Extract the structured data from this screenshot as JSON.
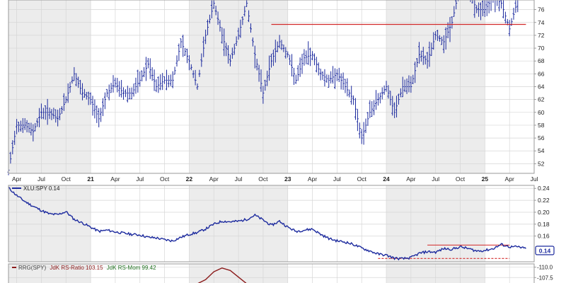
{
  "chart_data": [
    {
      "type": "ohlc",
      "symbol": "XLU",
      "y_ticks": [
        52,
        54,
        56,
        58,
        60,
        62,
        64,
        66,
        68,
        70,
        72,
        74,
        76
      ],
      "ylim": [
        50.5,
        77.5
      ],
      "x_ticks": [
        "Apr",
        "Jul",
        "Oct",
        "21",
        "Apr",
        "Jul",
        "Oct",
        "22",
        "Apr",
        "Jul",
        "Oct",
        "23",
        "Apr",
        "Jul",
        "Oct",
        "24",
        "Apr",
        "Jul",
        "Oct",
        "25",
        "Apr",
        "Jul"
      ],
      "x_tick_dates": [
        "2020-04",
        "2020-07",
        "2020-10",
        "2021-01",
        "2021-04",
        "2021-07",
        "2021-10",
        "2022-01",
        "2022-04",
        "2022-07",
        "2022-10",
        "2023-01",
        "2023-04",
        "2023-07",
        "2023-10",
        "2024-01",
        "2024-04",
        "2024-07",
        "2024-10",
        "2025-01",
        "2025-04",
        "2025-07"
      ],
      "x_range": [
        "2020-03",
        "2025-07"
      ],
      "series_color": "#1c2a9e",
      "close_path": [
        [
          "2020-03",
          51
        ],
        [
          "2020-04",
          58
        ],
        [
          "2020-05",
          58
        ],
        [
          "2020-06",
          57
        ],
        [
          "2020-07",
          60
        ],
        [
          "2020-08",
          60
        ],
        [
          "2020-09",
          59
        ],
        [
          "2020-10",
          62
        ],
        [
          "2020-11",
          66
        ],
        [
          "2020-12",
          63
        ],
        [
          "2021-01",
          62
        ],
        [
          "2021-02",
          59
        ],
        [
          "2021-03",
          63
        ],
        [
          "2021-04",
          64.5
        ],
        [
          "2021-05",
          63
        ],
        [
          "2021-06",
          63
        ],
        [
          "2021-07",
          65
        ],
        [
          "2021-08",
          67.5
        ],
        [
          "2021-09",
          64
        ],
        [
          "2021-10",
          65
        ],
        [
          "2021-11",
          65
        ],
        [
          "2021-12",
          71
        ],
        [
          "2022-01",
          68
        ],
        [
          "2022-02",
          64
        ],
        [
          "2022-03",
          72
        ],
        [
          "2022-04",
          77
        ],
        [
          "2022-05",
          72
        ],
        [
          "2022-06",
          68
        ],
        [
          "2022-07",
          72
        ],
        [
          "2022-08",
          77
        ],
        [
          "2022-09",
          69
        ],
        [
          "2022-10",
          63
        ],
        [
          "2022-11",
          68
        ],
        [
          "2022-12",
          71
        ],
        [
          "2023-01",
          69
        ],
        [
          "2023-02",
          65
        ],
        [
          "2023-03",
          68.5
        ],
        [
          "2023-04",
          69
        ],
        [
          "2023-05",
          66
        ],
        [
          "2023-06",
          65
        ],
        [
          "2023-07",
          66
        ],
        [
          "2023-08",
          64
        ],
        [
          "2023-09",
          62
        ],
        [
          "2023-10",
          56
        ],
        [
          "2023-11",
          60
        ],
        [
          "2023-12",
          62
        ],
        [
          "2024-01",
          64
        ],
        [
          "2024-02",
          60
        ],
        [
          "2024-03",
          64
        ],
        [
          "2024-04",
          64
        ],
        [
          "2024-05",
          69
        ],
        [
          "2024-06",
          68
        ],
        [
          "2024-07",
          72
        ],
        [
          "2024-08",
          71
        ],
        [
          "2024-09",
          74
        ],
        [
          "2024-10",
          80
        ],
        [
          "2024-11",
          79
        ],
        [
          "2024-12",
          76
        ],
        [
          "2025-01",
          76
        ],
        [
          "2025-02",
          78
        ],
        [
          "2025-03",
          77
        ],
        [
          "2025-04",
          73
        ],
        [
          "2025-05",
          77.5
        ]
      ],
      "annotations": [
        {
          "type": "resistance",
          "value": 73.7,
          "from": "2022-11",
          "to": "2025-06",
          "color": "#d22a2a"
        }
      ]
    },
    {
      "type": "line",
      "legend": "XLU:SPY 0.14",
      "current_value_label": "0.14",
      "y_ticks": [
        "0.24",
        "0.22",
        "0.20",
        "0.18",
        "0.16"
      ],
      "y_tick_values": [
        0.24,
        0.22,
        0.2,
        0.18,
        0.16
      ],
      "ylim": [
        0.117,
        0.245
      ],
      "series_color": "#1c2a9e",
      "series": [
        {
          "name": "XLU:SPY",
          "points": [
            [
              "2020-03",
              0.241
            ],
            [
              "2020-04",
              0.228
            ],
            [
              "2020-05",
              0.218
            ],
            [
              "2020-06",
              0.21
            ],
            [
              "2020-07",
              0.203
            ],
            [
              "2020-08",
              0.197
            ],
            [
              "2020-09",
              0.196
            ],
            [
              "2020-10",
              0.201
            ],
            [
              "2020-11",
              0.188
            ],
            [
              "2020-12",
              0.182
            ],
            [
              "2021-01",
              0.175
            ],
            [
              "2021-02",
              0.168
            ],
            [
              "2021-03",
              0.17
            ],
            [
              "2021-04",
              0.167
            ],
            [
              "2021-05",
              0.165
            ],
            [
              "2021-06",
              0.163
            ],
            [
              "2021-07",
              0.162
            ],
            [
              "2021-08",
              0.158
            ],
            [
              "2021-09",
              0.157
            ],
            [
              "2021-10",
              0.154
            ],
            [
              "2021-11",
              0.152
            ],
            [
              "2021-12",
              0.158
            ],
            [
              "2022-01",
              0.163
            ],
            [
              "2022-02",
              0.166
            ],
            [
              "2022-03",
              0.172
            ],
            [
              "2022-04",
              0.18
            ],
            [
              "2022-05",
              0.185
            ],
            [
              "2022-06",
              0.184
            ],
            [
              "2022-07",
              0.185
            ],
            [
              "2022-08",
              0.188
            ],
            [
              "2022-09",
              0.195
            ],
            [
              "2022-10",
              0.187
            ],
            [
              "2022-11",
              0.178
            ],
            [
              "2022-12",
              0.185
            ],
            [
              "2023-01",
              0.175
            ],
            [
              "2023-02",
              0.168
            ],
            [
              "2023-03",
              0.17
            ],
            [
              "2023-04",
              0.172
            ],
            [
              "2023-05",
              0.163
            ],
            [
              "2023-06",
              0.156
            ],
            [
              "2023-07",
              0.152
            ],
            [
              "2023-08",
              0.15
            ],
            [
              "2023-09",
              0.146
            ],
            [
              "2023-10",
              0.14
            ],
            [
              "2023-11",
              0.135
            ],
            [
              "2023-12",
              0.13
            ],
            [
              "2024-01",
              0.128
            ],
            [
              "2024-02",
              0.123
            ],
            [
              "2024-03",
              0.122
            ],
            [
              "2024-04",
              0.124
            ],
            [
              "2024-05",
              0.131
            ],
            [
              "2024-06",
              0.134
            ],
            [
              "2024-07",
              0.133
            ],
            [
              "2024-08",
              0.139
            ],
            [
              "2024-09",
              0.138
            ],
            [
              "2024-10",
              0.142
            ],
            [
              "2024-11",
              0.139
            ],
            [
              "2024-12",
              0.135
            ],
            [
              "2025-01",
              0.136
            ],
            [
              "2025-02",
              0.139
            ],
            [
              "2025-03",
              0.146
            ],
            [
              "2025-04",
              0.142
            ],
            [
              "2025-05",
              0.142
            ],
            [
              "2025-06",
              0.139
            ]
          ]
        }
      ],
      "annotations": [
        {
          "type": "resistance",
          "value": 0.145,
          "from": "2024-06",
          "to": "2025-04",
          "color": "#d22a2a",
          "style": "solid"
        },
        {
          "type": "support",
          "value": 0.1225,
          "from": "2023-12",
          "to": "2025-04",
          "color": "#d22a2a",
          "style": "dashed"
        }
      ]
    },
    {
      "type": "line",
      "legend": {
        "prefix": "RRG(SPY)",
        "ratio": "JdK RS-Ratio 103.15",
        "momentum": "JdK RS-Mom 99.42"
      },
      "colors": {
        "prefix": "#444444",
        "ratio": "#8b1a1a",
        "momentum": "#1d6e1d"
      },
      "y_ticks": [
        "110.0",
        "107.5"
      ],
      "y_tick_values": [
        110.0,
        107.5
      ],
      "ylim": [
        106.0,
        110.8
      ],
      "series": [
        {
          "name": "JdK RS-Ratio",
          "color": "#8b1a1a",
          "points": [
            [
              "2022-02",
              106.0
            ],
            [
              "2022-03",
              107.0
            ],
            [
              "2022-04",
              108.9
            ],
            [
              "2022-05",
              109.8
            ],
            [
              "2022-06",
              109.2
            ],
            [
              "2022-07",
              107.6
            ],
            [
              "2022-08",
              106.0
            ]
          ]
        }
      ]
    }
  ]
}
